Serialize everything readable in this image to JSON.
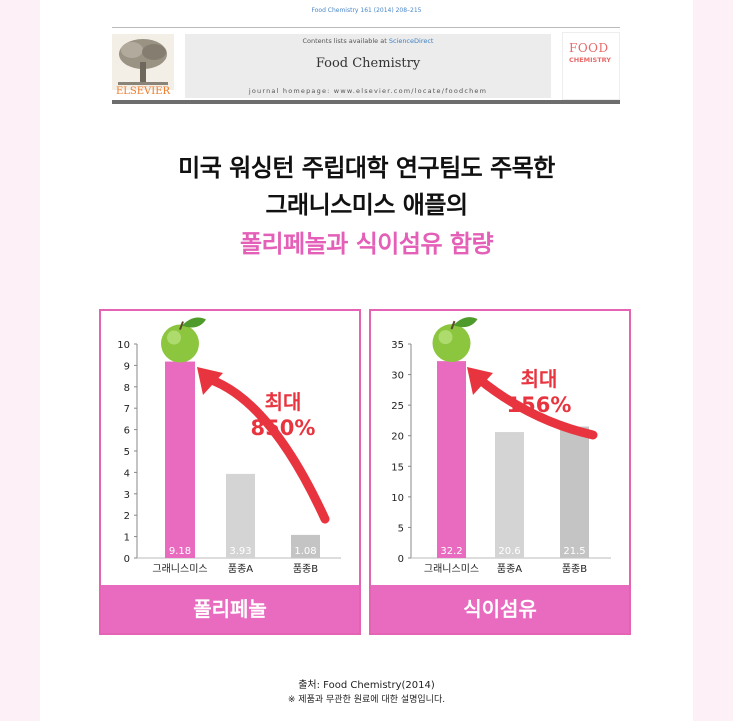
{
  "citation": "Food Chemistry 161 (2014) 208–215",
  "journal_header": {
    "contents_prefix": "Contents lists available at ",
    "contents_link": "ScienceDirect",
    "journal_name": "Food Chemistry",
    "homepage": "journal homepage: www.elsevier.com/locate/foodchem",
    "publisher": "ELSEVIER",
    "cover_title_1": "FOOD",
    "cover_title_2": "CHEMISTRY"
  },
  "headline": {
    "line1": "미국 워싱턴 주립대학 연구팀도 주목한",
    "line2": "그래니스미스 애플의",
    "line3": "폴리페놀과 식이섬유 함량"
  },
  "colors": {
    "accent": "#e86bbf",
    "highlight_bar": "#e86bbf",
    "bar_a": "#d4d4d4",
    "bar_b": "#c4c4c4",
    "arrow": "#e8343f",
    "increase_text": "#e8343f"
  },
  "chart_data": [
    {
      "type": "bar",
      "panel_label": "폴리페놀",
      "categories": [
        "그래니스미스",
        "품종A",
        "품종B"
      ],
      "values": [
        9.18,
        3.93,
        1.08
      ],
      "value_labels": [
        "9.18",
        "3.93",
        "1.08"
      ],
      "yticks": [
        "0",
        "1",
        "2",
        "3",
        "4",
        "5",
        "6",
        "7",
        "8",
        "9",
        "10"
      ],
      "ylim": [
        0,
        10
      ],
      "annotation": {
        "line1": "최대",
        "line2": "850%"
      },
      "marker_icon": "green-apple-icon"
    },
    {
      "type": "bar",
      "panel_label": "식이섬유",
      "categories": [
        "그래니스미스",
        "품종A",
        "품종B"
      ],
      "values": [
        32.2,
        20.6,
        21.5
      ],
      "value_labels": [
        "32.2",
        "20.6",
        "21.5"
      ],
      "yticks": [
        "0",
        "5",
        "10",
        "15",
        "20",
        "25",
        "30",
        "35"
      ],
      "ylim": [
        0,
        35
      ],
      "annotation": {
        "line1": "최대",
        "line2": "156%"
      },
      "marker_icon": "green-apple-icon"
    }
  ],
  "footer": {
    "source": "출처: Food Chemistry(2014)",
    "note": "※ 제품과 무관한 원료에 대한 설명입니다."
  }
}
